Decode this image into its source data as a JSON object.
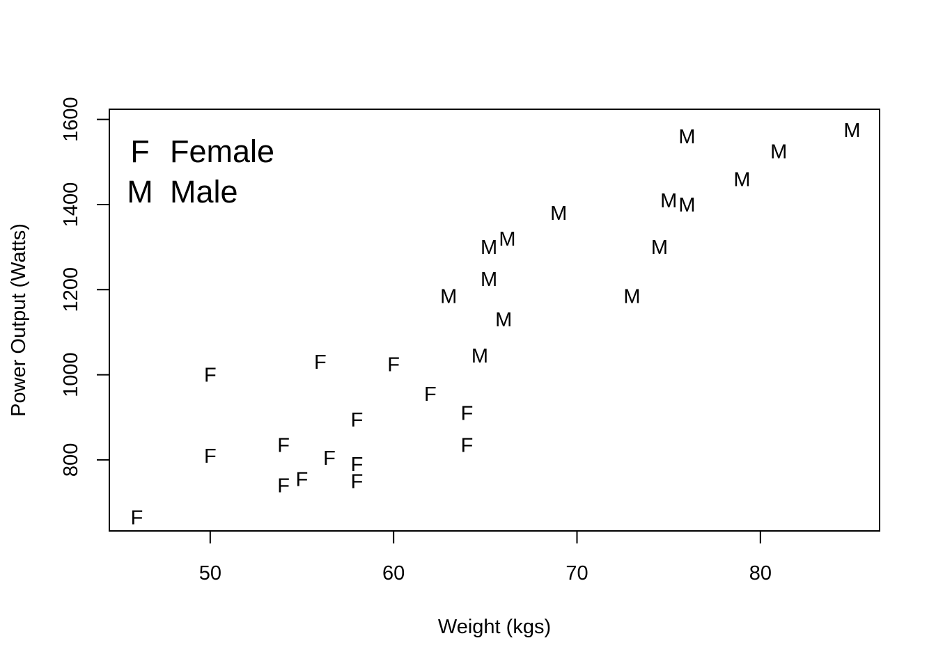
{
  "chart_data": {
    "type": "scatter",
    "title": "",
    "xlabel": "Weight (kgs)",
    "ylabel": "Power Output (Watts)",
    "xlim": [
      44.5,
      86.5
    ],
    "ylim": [
      633,
      1624
    ],
    "x_ticks": [
      50,
      60,
      70,
      80
    ],
    "y_ticks": [
      800,
      1000,
      1200,
      1400,
      1600
    ],
    "grid": false,
    "legend_placement": "top-left",
    "legend": [
      {
        "symbol": "F",
        "label": "Female"
      },
      {
        "symbol": "M",
        "label": "Male"
      }
    ],
    "series": [
      {
        "name": "Female",
        "symbol": "F",
        "points": [
          {
            "x": 46,
            "y": 665
          },
          {
            "x": 50,
            "y": 1000
          },
          {
            "x": 50,
            "y": 810
          },
          {
            "x": 54,
            "y": 835
          },
          {
            "x": 54,
            "y": 740
          },
          {
            "x": 55,
            "y": 755
          },
          {
            "x": 56,
            "y": 1030
          },
          {
            "x": 56.5,
            "y": 805
          },
          {
            "x": 58,
            "y": 895
          },
          {
            "x": 58,
            "y": 790
          },
          {
            "x": 58,
            "y": 750
          },
          {
            "x": 60,
            "y": 1025
          },
          {
            "x": 62,
            "y": 955
          },
          {
            "x": 64,
            "y": 910
          },
          {
            "x": 64,
            "y": 835
          }
        ]
      },
      {
        "name": "Male",
        "symbol": "M",
        "points": [
          {
            "x": 63,
            "y": 1185
          },
          {
            "x": 64.7,
            "y": 1045
          },
          {
            "x": 65.2,
            "y": 1300
          },
          {
            "x": 65.2,
            "y": 1225
          },
          {
            "x": 66,
            "y": 1130
          },
          {
            "x": 66.2,
            "y": 1320
          },
          {
            "x": 69,
            "y": 1380
          },
          {
            "x": 73,
            "y": 1185
          },
          {
            "x": 74.5,
            "y": 1300
          },
          {
            "x": 75,
            "y": 1410
          },
          {
            "x": 76,
            "y": 1400
          },
          {
            "x": 76,
            "y": 1560
          },
          {
            "x": 79,
            "y": 1460
          },
          {
            "x": 81,
            "y": 1525
          },
          {
            "x": 85,
            "y": 1575
          }
        ]
      }
    ]
  }
}
